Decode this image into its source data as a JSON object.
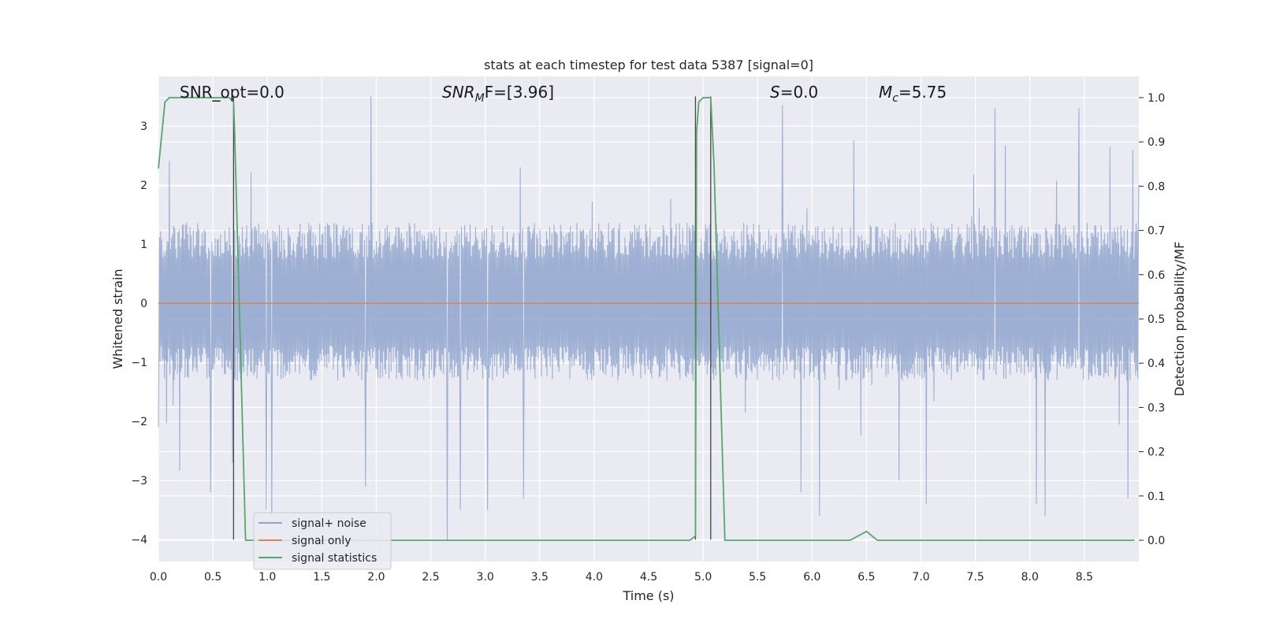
{
  "chart_data": {
    "type": "line",
    "title": "stats at each timestep for test data 5387 [signal=0]",
    "xlabel": "Time (s)",
    "ylabel": "Whitened strain",
    "y2label": "Detection probability/MF",
    "xlim": [
      0,
      9
    ],
    "ylim": [
      -4.37,
      3.84
    ],
    "y2lim": [
      -0.048,
      1.048
    ],
    "x_ticks": [
      0.0,
      0.5,
      1.0,
      1.5,
      2.0,
      2.5,
      3.0,
      3.5,
      4.0,
      4.5,
      5.0,
      5.5,
      6.0,
      6.5,
      7.0,
      7.5,
      8.0,
      8.5
    ],
    "x_tick_labels": [
      "0.0",
      "0.5",
      "1.0",
      "1.5",
      "2.0",
      "2.5",
      "3.0",
      "3.5",
      "4.0",
      "4.5",
      "5.0",
      "5.5",
      "6.0",
      "6.5",
      "7.0",
      "7.5",
      "8.0",
      "8.5"
    ],
    "y_ticks": [
      3,
      2,
      1,
      0,
      -1,
      -2,
      -3,
      -4
    ],
    "y_tick_labels": [
      "3",
      "2",
      "1",
      "0",
      "−1",
      "−2",
      "−3",
      "−4"
    ],
    "y2_ticks": [
      1.0,
      0.9,
      0.8,
      0.7,
      0.6,
      0.5,
      0.4,
      0.3,
      0.2,
      0.1,
      0.0
    ],
    "y2_tick_labels": [
      "1.0",
      "0.9",
      "0.8",
      "0.7",
      "0.6",
      "0.5",
      "0.4",
      "0.3",
      "0.2",
      "0.1",
      "0.0"
    ],
    "grid": true,
    "legend": {
      "placement": "lower-left",
      "entries": [
        {
          "label": "signal+ noise",
          "color": "#8fa5cc"
        },
        {
          "label": "signal only",
          "color": "#dd8452"
        },
        {
          "label": "signal statistics",
          "color": "#55a868"
        }
      ]
    },
    "annotations": [
      {
        "main": "SNR_opt=0.0",
        "sub": "",
        "rest": ""
      },
      {
        "main": "SNR",
        "sub": "M",
        "rest": "F=[3.96]"
      },
      {
        "main": "S",
        "sub": "",
        "rest": "=0.0"
      },
      {
        "main": "M",
        "sub": "c",
        "rest": "=5.75"
      }
    ],
    "noise": {
      "series": "signal+ noise",
      "typical_range": [
        -1.2,
        1.25
      ],
      "min": -4.0,
      "max": 3.5,
      "y_at_ends": [
        -2.1,
        2.0
      ],
      "extremes": [
        {
          "x": 0.48,
          "y": -3.2
        },
        {
          "x": 0.68,
          "y": -2.7
        },
        {
          "x": 0.99,
          "y": -3.5
        },
        {
          "x": 1.04,
          "y": -3.6
        },
        {
          "x": 1.9,
          "y": -3.1
        },
        {
          "x": 1.95,
          "y": 3.5
        },
        {
          "x": 2.65,
          "y": -4.0
        },
        {
          "x": 2.77,
          "y": -3.5
        },
        {
          "x": 3.02,
          "y": -3.5
        },
        {
          "x": 3.35,
          "y": -3.3
        },
        {
          "x": 5.73,
          "y": 3.35
        },
        {
          "x": 5.9,
          "y": -3.2
        },
        {
          "x": 6.07,
          "y": -3.6
        },
        {
          "x": 6.8,
          "y": -3.0
        },
        {
          "x": 7.05,
          "y": -3.4
        },
        {
          "x": 7.68,
          "y": 3.3
        },
        {
          "x": 8.06,
          "y": -3.4
        },
        {
          "x": 8.14,
          "y": -3.6
        },
        {
          "x": 8.45,
          "y": 3.3
        },
        {
          "x": 8.9,
          "y": -3.3
        }
      ]
    },
    "signal_only": {
      "series": "signal only",
      "x": [
        0.0,
        9.0
      ],
      "y": [
        0.0,
        0.0
      ]
    },
    "statistics": {
      "series": "signal statistics",
      "x": [
        0.0,
        0.06,
        0.1,
        0.15,
        0.2,
        0.3,
        0.4,
        0.5,
        0.6,
        0.65,
        0.69,
        0.7,
        0.8,
        0.81,
        1.0,
        2.0,
        3.0,
        4.0,
        4.5,
        4.88,
        4.93,
        4.94,
        4.96,
        5.0,
        5.05,
        5.07,
        5.1,
        5.2,
        6.35,
        6.5,
        6.55,
        6.6,
        7.0,
        8.0,
        8.96
      ],
      "y": [
        0.84,
        0.99,
        1.0,
        1.0,
        1.0,
        1.0,
        1.0,
        1.0,
        1.0,
        1.0,
        0.99,
        0.92,
        0.0,
        0.0,
        0.0,
        0.0,
        0.0,
        0.0,
        0.0,
        0.0,
        0.01,
        0.92,
        0.99,
        1.0,
        1.0,
        1.0,
        0.85,
        0.0,
        0.0,
        0.02,
        0.01,
        0.0,
        0.0,
        0.0,
        0.0
      ]
    },
    "vertical_lines": [
      {
        "x": 0.69,
        "y_range": [
          -4.0,
          3.5
        ]
      },
      {
        "x": 4.93,
        "y_range": [
          -4.0,
          3.5
        ]
      },
      {
        "x": 5.07,
        "y_range": [
          -4.0,
          3.5
        ]
      }
    ]
  }
}
